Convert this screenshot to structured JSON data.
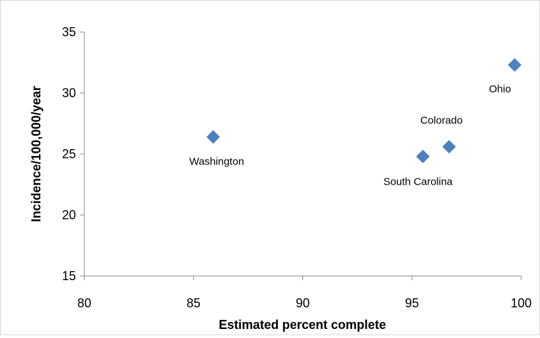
{
  "chart_data": {
    "type": "scatter",
    "title": "",
    "xlabel": "Estimated percent complete",
    "ylabel": "Incidence/100,000/year",
    "xlim": [
      80,
      100
    ],
    "ylim": [
      15,
      35
    ],
    "xticks": [
      80,
      85,
      90,
      95,
      100
    ],
    "yticks": [
      15,
      20,
      25,
      30,
      35
    ],
    "grid": false,
    "legend": "none",
    "marker": "diamond",
    "marker_color": "#4f81bd",
    "points": [
      {
        "label": "Washington",
        "x": 85.9,
        "y": 26.4
      },
      {
        "label": "South Carolina",
        "x": 95.5,
        "y": 24.8
      },
      {
        "label": "Colorado",
        "x": 96.7,
        "y": 25.6
      },
      {
        "label": "Ohio",
        "x": 99.7,
        "y": 32.3
      }
    ]
  }
}
